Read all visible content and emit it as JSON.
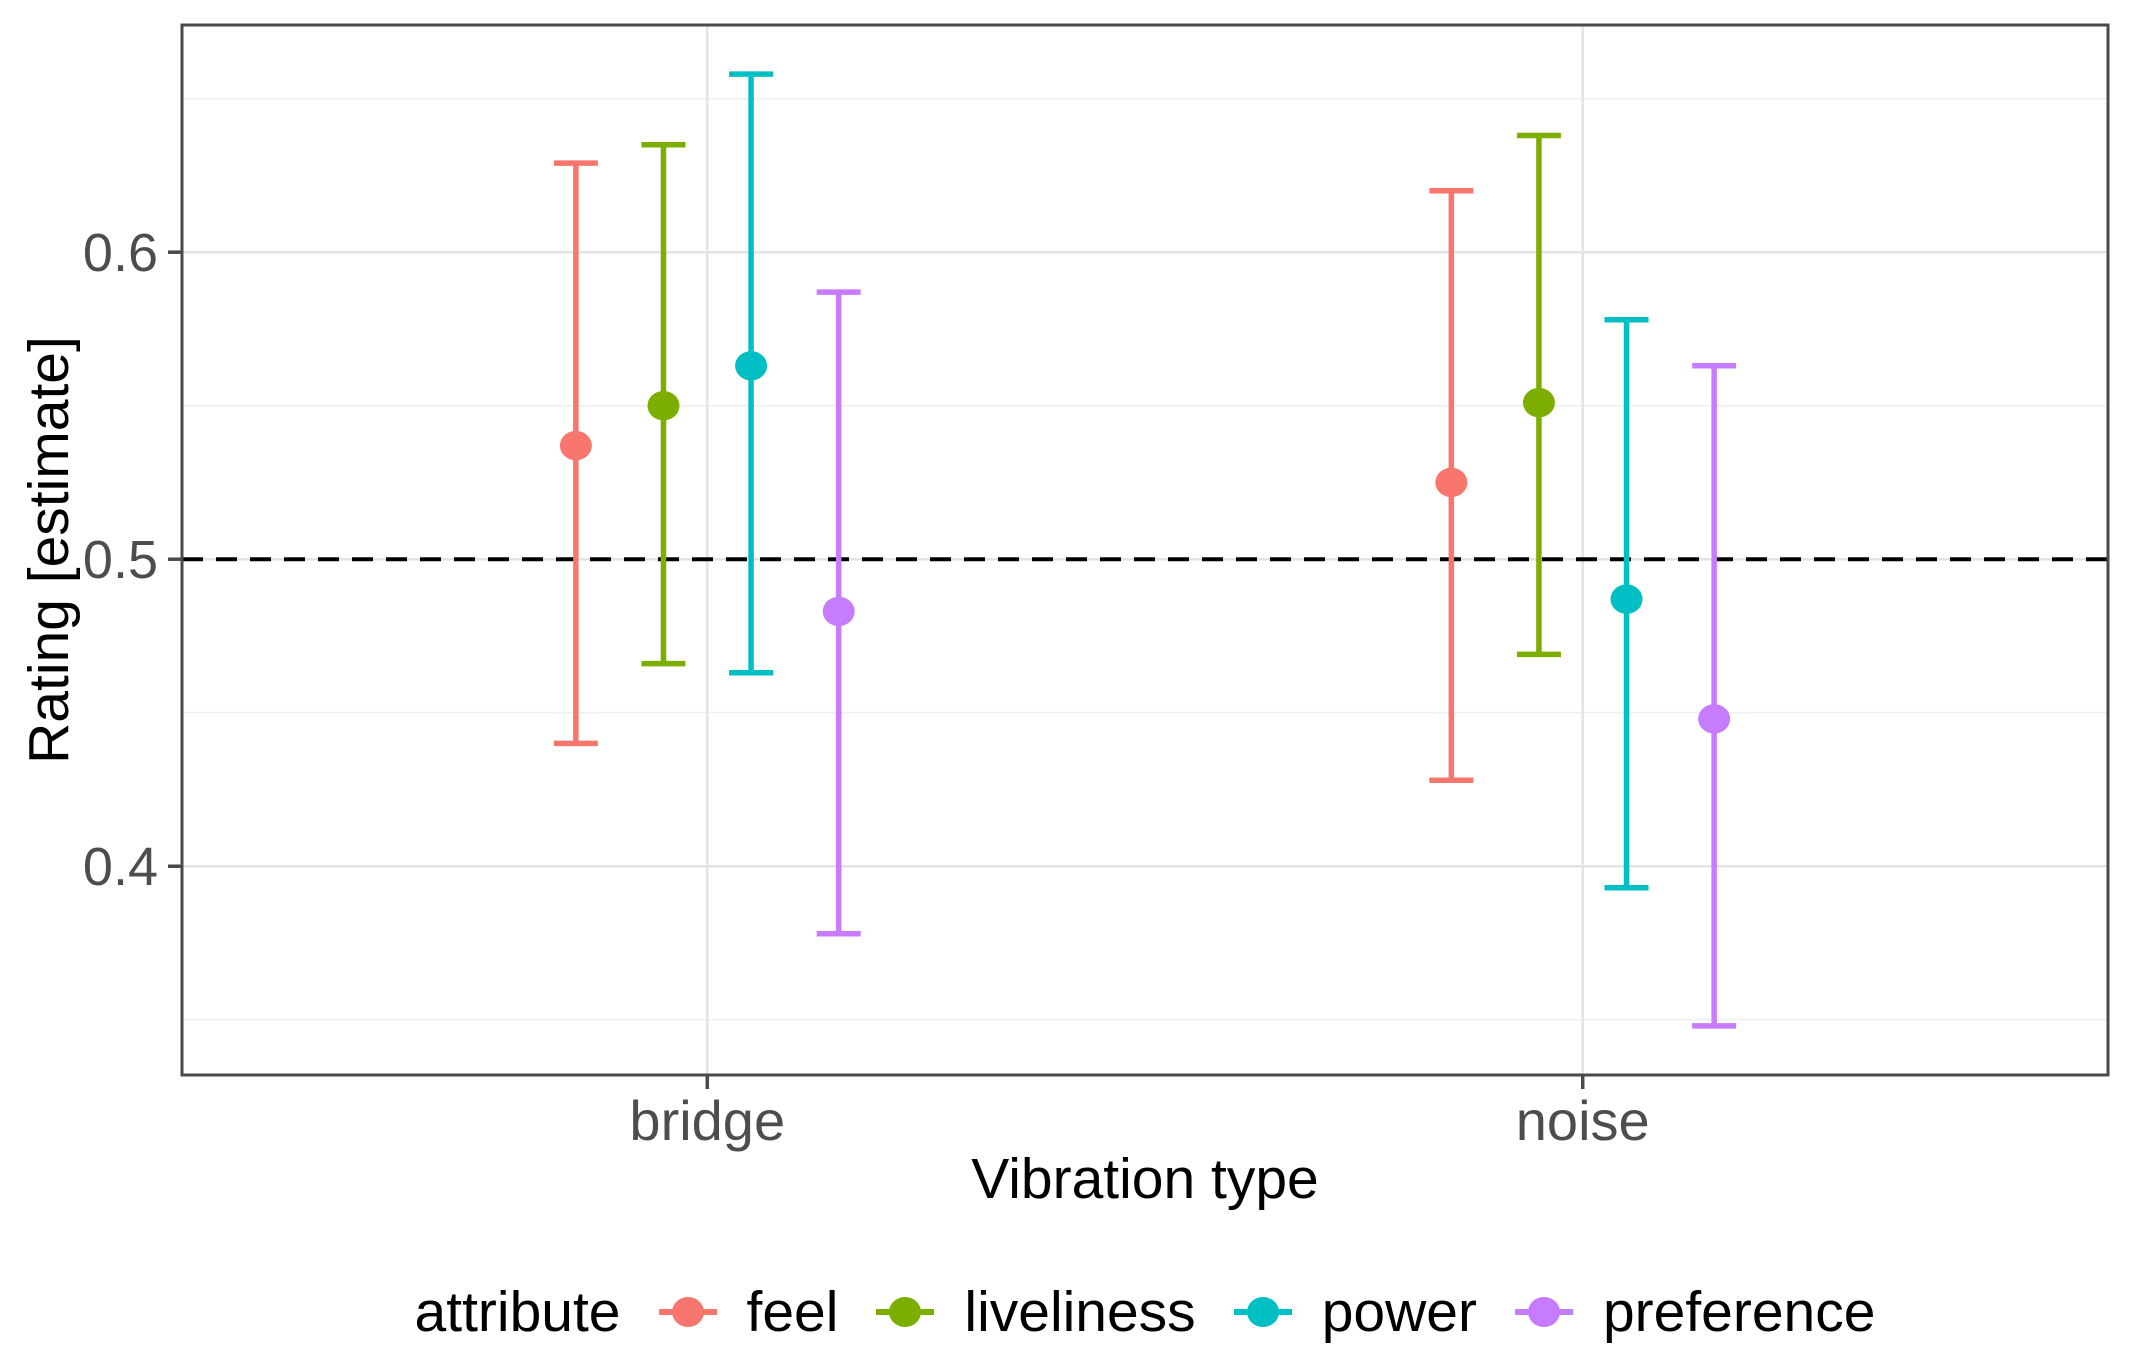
{
  "figure": {
    "x_axis_title": "Vibration type",
    "y_axis_title": "Rating [estimate]"
  },
  "chart_data": {
    "type": "pointrange",
    "title": "",
    "xlabel": "Vibration type",
    "ylabel": "Rating [estimate]",
    "categories": [
      "bridge",
      "noise"
    ],
    "series": [
      {
        "name": "feel",
        "color": "#F8766D",
        "estimates": [
          0.537,
          0.525
        ],
        "lowers": [
          0.44,
          0.428
        ],
        "uppers": [
          0.629,
          0.62
        ]
      },
      {
        "name": "liveliness",
        "color": "#7CAE00",
        "estimates": [
          0.55,
          0.551
        ],
        "lowers": [
          0.466,
          0.469
        ],
        "uppers": [
          0.635,
          0.638
        ]
      },
      {
        "name": "power",
        "color": "#00BFC4",
        "estimates": [
          0.563,
          0.487
        ],
        "lowers": [
          0.463,
          0.393
        ],
        "uppers": [
          0.658,
          0.578
        ]
      },
      {
        "name": "preference",
        "color": "#C77CFF",
        "estimates": [
          0.483,
          0.448
        ],
        "lowers": [
          0.378,
          0.348
        ],
        "uppers": [
          0.587,
          0.563
        ]
      }
    ],
    "reference_line": {
      "y": 0.5,
      "style": "dashed",
      "color": "#000000"
    },
    "ylim": [
      0.332,
      0.674
    ],
    "y_major_ticks": [
      0.4,
      0.5,
      0.6
    ],
    "y_major_tick_labels": [
      "0.4",
      "0.5",
      "0.6"
    ],
    "y_minor_ticks": [
      0.35,
      0.45,
      0.55,
      0.65
    ],
    "grid": true,
    "legend": {
      "title": "attribute",
      "position": "bottom"
    }
  },
  "styles": {
    "axis_text_color": "#4D4D4D",
    "axis_title_color": "#000000",
    "panel_border_color": "#4A4A4A",
    "grid_major_color": "#E3E3E3",
    "grid_minor_color": "#EFEFEF",
    "background": "#FFFFFF"
  }
}
